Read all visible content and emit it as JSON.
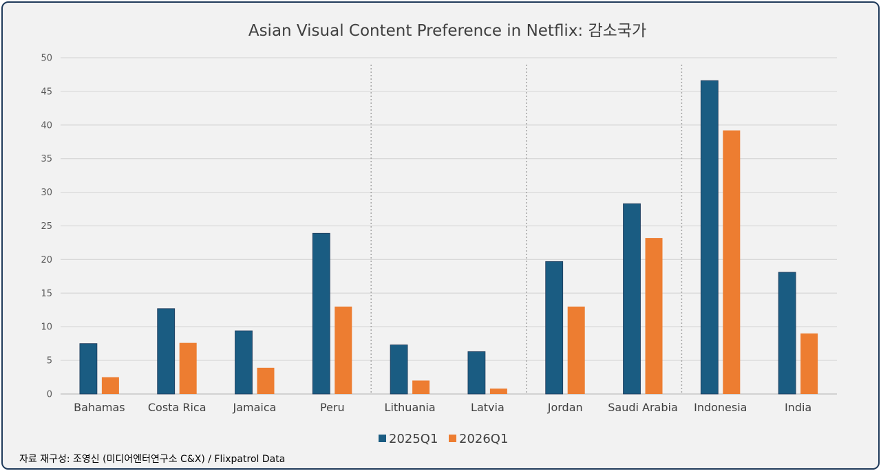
{
  "chart_data": {
    "type": "bar",
    "title": "Asian Visual Content Preference in Netflix: 감소국가",
    "categories": [
      "Bahamas",
      "Costa Rica",
      "Jamaica",
      "Peru",
      "Lithuania",
      "Latvia",
      "Jordan",
      "Saudi Arabia",
      "Indonesia",
      "India"
    ],
    "series": [
      {
        "name": "2025Q1",
        "color": "#1a5c82",
        "values": [
          7.5,
          12.7,
          9.4,
          23.9,
          7.3,
          6.3,
          19.7,
          28.3,
          46.6,
          18.1
        ]
      },
      {
        "name": "2026Q1",
        "color": "#ed7d31",
        "values": [
          2.5,
          7.6,
          3.9,
          13.0,
          2.0,
          0.8,
          13.0,
          23.2,
          39.2,
          9.0
        ]
      }
    ],
    "xlabel": "",
    "ylabel": "",
    "ylim": [
      0,
      50
    ],
    "yticks": [
      0,
      5,
      10,
      15,
      20,
      25,
      30,
      35,
      40,
      45,
      50
    ],
    "grid": true,
    "group_separators_after": [
      "Peru",
      "Latvia",
      "Saudi Arabia"
    ],
    "legend_position": "bottom"
  },
  "footer": {
    "source_note": "자료 재구성: 조영신 (미디어엔터연구소 C&X) / Flixpatrol Data"
  }
}
